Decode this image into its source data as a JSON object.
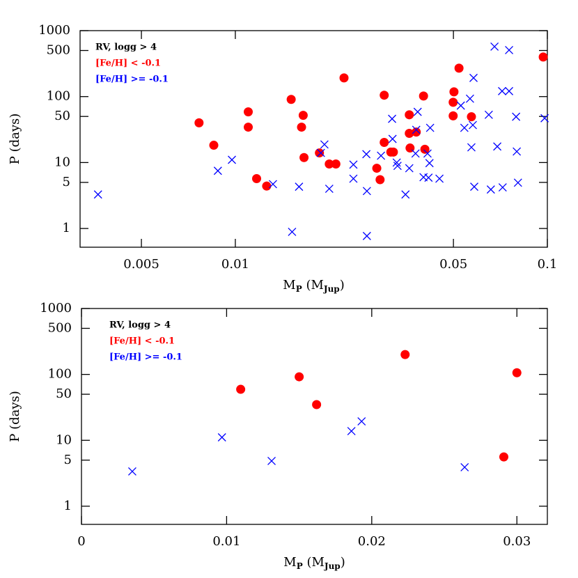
{
  "chart_data": [
    {
      "type": "scatter",
      "annotation": "RV, logg > 4",
      "xlabel_parts": [
        "M",
        "P",
        " (M",
        "Jup",
        ")"
      ],
      "ylabel": "P (days)",
      "xscale": "log",
      "yscale": "log",
      "xlim": [
        0.00318,
        0.1
      ],
      "ylim": [
        0.52,
        1000
      ],
      "xticks": [
        0.005,
        0.01,
        0.05,
        0.1
      ],
      "yticks": [
        1,
        5,
        10,
        50,
        100,
        500,
        1000
      ],
      "series": [
        {
          "name": "[Fe/H] < -0.1",
          "color": "#ff0000",
          "marker": "circle",
          "x": [
            0.00765,
            0.00853,
            0.011,
            0.011,
            0.0117,
            0.0126,
            0.0151,
            0.0163,
            0.0165,
            0.0166,
            0.0186,
            0.02,
            0.021,
            0.0223,
            0.0284,
            0.0291,
            0.03,
            0.03,
            0.0315,
            0.0321,
            0.0361,
            0.0361,
            0.0363,
            0.038,
            0.0401,
            0.0405,
            0.0502,
            0.0499,
            0.0499,
            0.0521,
            0.0571,
            0.097
          ],
          "values": [
            40,
            18.3,
            58.7,
            34.4,
            5.7,
            4.4,
            90.7,
            34.4,
            52,
            11.9,
            14,
            9.5,
            9.5,
            192,
            8.2,
            5.5,
            105,
            20.2,
            14.4,
            14.4,
            53,
            27.7,
            16.6,
            29,
            102,
            15.9,
            118,
            82,
            51,
            270,
            49.5,
            398
          ]
        },
        {
          "name": "[Fe/H] >= -0.1",
          "color": "#0000ff",
          "marker": "x",
          "x": [
            0.00363,
            0.00879,
            0.00975,
            0.0132,
            0.0152,
            0.016,
            0.0188,
            0.0193,
            0.02,
            0.0239,
            0.0239,
            0.0263,
            0.0264,
            0.0264,
            0.0293,
            0.0318,
            0.0319,
            0.0329,
            0.0331,
            0.0351,
            0.0361,
            0.0378,
            0.0384,
            0.038,
            0.0401,
            0.0413,
            0.0419,
            0.0421,
            0.0416,
            0.0451,
            0.0528,
            0.0542,
            0.0565,
            0.0577,
            0.0571,
            0.058,
            0.0583,
            0.0649,
            0.0659,
            0.0677,
            0.0691,
            0.0716,
            0.0719,
            0.0754,
            0.0754,
            0.0794,
            0.0798,
            0.0805,
            0.098
          ],
          "values": [
            3.28,
            7.5,
            11,
            4.7,
            0.89,
            4.3,
            14,
            18.8,
            4.0,
            9.3,
            5.7,
            13.4,
            3.7,
            0.77,
            12.7,
            46,
            22.8,
            10,
            8.9,
            3.28,
            8.2,
            13.7,
            58.7,
            31.3,
            6.0,
            13.7,
            9.8,
            33.6,
            5.9,
            5.7,
            73,
            33.6,
            93,
            37,
            17,
            192,
            4.3,
            53,
            3.9,
            573,
            17.5,
            121,
            4.2,
            507,
            121,
            49.5,
            14.7,
            4.95,
            47
          ]
        }
      ]
    },
    {
      "type": "scatter",
      "annotation": "RV, logg > 4",
      "xlabel_parts": [
        "M",
        "P",
        " (M",
        "Jup",
        ")"
      ],
      "ylabel": "P (days)",
      "xscale": "linear",
      "yscale": "log",
      "xlim": [
        0,
        0.0321
      ],
      "ylim": [
        0.53,
        1000
      ],
      "xticks": [
        0,
        0.01,
        0.02,
        0.03
      ],
      "yticks": [
        1,
        5,
        10,
        50,
        100,
        500,
        1000
      ],
      "series": [
        {
          "name": "[Fe/H] < -0.1",
          "color": "#ff0000",
          "marker": "circle",
          "x": [
            0.01097,
            0.015,
            0.0162,
            0.0223,
            0.0291,
            0.03
          ],
          "values": [
            59.4,
            92,
            34.8,
            200,
            5.6,
            106
          ]
        },
        {
          "name": "[Fe/H] >= -0.1",
          "color": "#0000ff",
          "marker": "x",
          "x": [
            0.0035,
            0.00968,
            0.0131,
            0.0186,
            0.0193,
            0.0264
          ],
          "values": [
            3.37,
            11.1,
            4.86,
            13.8,
            19.4,
            3.9
          ]
        }
      ]
    }
  ]
}
